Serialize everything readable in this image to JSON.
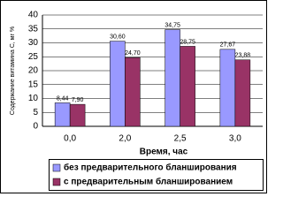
{
  "chart_data": {
    "type": "bar",
    "categories": [
      "0,0",
      "2,0",
      "2,5",
      "3,0"
    ],
    "series": [
      {
        "name": "без предварительного бланширования",
        "color": "#9999ff",
        "values": [
          8.44,
          30.6,
          34.75,
          27.67
        ],
        "value_labels": [
          "8,44",
          "30,60",
          "34,75",
          "27,67"
        ]
      },
      {
        "name": "с предварительным бланшированием",
        "color": "#993366",
        "values": [
          7.9,
          24.7,
          28.75,
          23.88
        ],
        "value_labels": [
          "7,90",
          "24,70",
          "28,75",
          "23,88"
        ]
      }
    ],
    "x_label": "Время, час",
    "y_label": "Содержание витамина С, мг %",
    "ylim": [
      0,
      40
    ],
    "yticks": [
      0,
      5,
      10,
      15,
      20,
      25,
      30,
      35,
      40
    ],
    "grid": true,
    "legend": "bottom"
  }
}
